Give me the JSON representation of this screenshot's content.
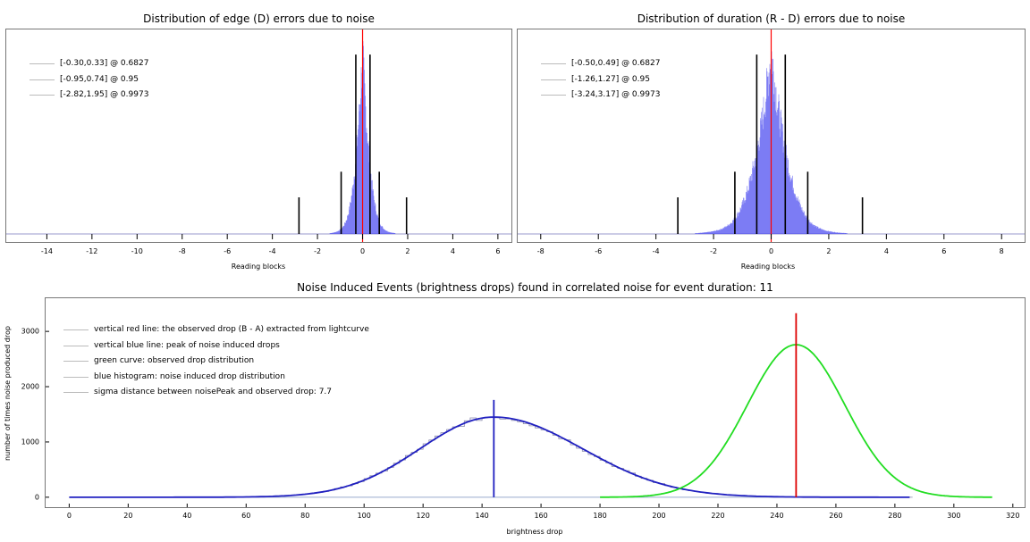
{
  "chart_data": [
    {
      "type": "histogram",
      "title": "Distribution of edge (D) errors due to noise",
      "xlabel": "Reading blocks",
      "xlim": [
        -15.8,
        6.6
      ],
      "x_ticks": [
        -14,
        -12,
        -10,
        -8,
        -6,
        -4,
        -2,
        0,
        2,
        4,
        6
      ],
      "x_tick_labels": [
        "-14",
        "-12",
        "-10",
        "-8",
        "-6",
        "-4",
        "-2",
        "0",
        "2",
        "4",
        "6"
      ],
      "distribution": {
        "center": 0.0,
        "sigma": 0.32,
        "color": "#4444ee"
      },
      "zero_line": {
        "x": 0,
        "color": "#ff0000"
      },
      "confidence_markers": [
        {
          "low": -0.3,
          "high": 0.33,
          "level": 0.6827,
          "height": 0.98
        },
        {
          "low": -0.95,
          "high": 0.74,
          "level": 0.95,
          "height": 0.34
        },
        {
          "low": -2.82,
          "high": 1.95,
          "level": 0.9973,
          "height": 0.2
        }
      ],
      "legend": [
        "[-0.30,0.33] @ 0.6827",
        "[-0.95,0.74] @ 0.95",
        "[-2.82,1.95] @ 0.9973"
      ]
    },
    {
      "type": "histogram",
      "title": "Distribution of duration (R - D) errors due to noise",
      "xlabel": "Reading blocks",
      "xlim": [
        -8.8,
        8.8
      ],
      "x_ticks": [
        -8,
        -6,
        -4,
        -2,
        0,
        2,
        4,
        6,
        8
      ],
      "x_tick_labels": [
        "-8",
        "-6",
        "-4",
        "-2",
        "0",
        "2",
        "4",
        "6",
        "8"
      ],
      "distribution": {
        "center": 0.0,
        "sigma": 0.58,
        "color": "#4444ee"
      },
      "zero_line": {
        "x": 0,
        "color": "#ff0000"
      },
      "confidence_markers": [
        {
          "low": -0.5,
          "high": 0.49,
          "level": 0.6827,
          "height": 0.98
        },
        {
          "low": -1.26,
          "high": 1.27,
          "level": 0.95,
          "height": 0.34
        },
        {
          "low": -3.24,
          "high": 3.17,
          "level": 0.9973,
          "height": 0.2
        }
      ],
      "legend": [
        "[-0.50,0.49] @ 0.6827",
        "[-1.26,1.27] @ 0.95",
        "[-3.24,3.17] @ 0.9973"
      ]
    },
    {
      "type": "histogram+line",
      "title": "Noise Induced Events (brightness drops) found in correlated noise for event duration: 11",
      "xlabel": "brightness drop",
      "ylabel": "number of times noise produced drop",
      "xlim": [
        -8,
        324
      ],
      "ylim": [
        -180,
        3600
      ],
      "x_ticks": [
        0,
        20,
        40,
        60,
        80,
        100,
        120,
        140,
        160,
        180,
        200,
        220,
        240,
        260,
        280,
        300,
        320
      ],
      "x_tick_labels": [
        "0",
        "20",
        "40",
        "60",
        "80",
        "100",
        "120",
        "140",
        "160",
        "180",
        "200",
        "220",
        "240",
        "260",
        "280",
        "300",
        "320"
      ],
      "y_ticks": [
        0,
        1000,
        2000,
        3000
      ],
      "y_tick_labels": [
        "0",
        "1000",
        "2000",
        "3000"
      ],
      "series": [
        {
          "name": "blue histogram: noise induced drop distribution",
          "color": "#2020c0",
          "peak_x": 144,
          "peak_y": 1450,
          "sigma_left": 25,
          "sigma_right": 30,
          "range": [
            0,
            285
          ]
        },
        {
          "name": "green curve: observed drop distribution",
          "color": "#22dd22",
          "peak_x": 246.5,
          "peak_y": 2760,
          "sigma": 16.5,
          "range": [
            180,
            313
          ]
        }
      ],
      "vertical_lines": [
        {
          "name": "vertical red line: the observed drop (B - A) extracted from lightcurve",
          "x": 246.5,
          "y_top": 3330,
          "color": "#dd0000"
        },
        {
          "name": "vertical blue line: peak of noise induced drops",
          "x": 144,
          "y_top": 1760,
          "color": "#2020c0"
        }
      ],
      "legend": [
        "vertical red line: the observed drop (B - A) extracted from lightcurve",
        "vertical blue line: peak of noise induced drops",
        "green curve: observed drop distribution",
        "blue histogram: noise induced drop distribution",
        "sigma distance between noisePeak and observed drop: 7.7"
      ]
    }
  ]
}
